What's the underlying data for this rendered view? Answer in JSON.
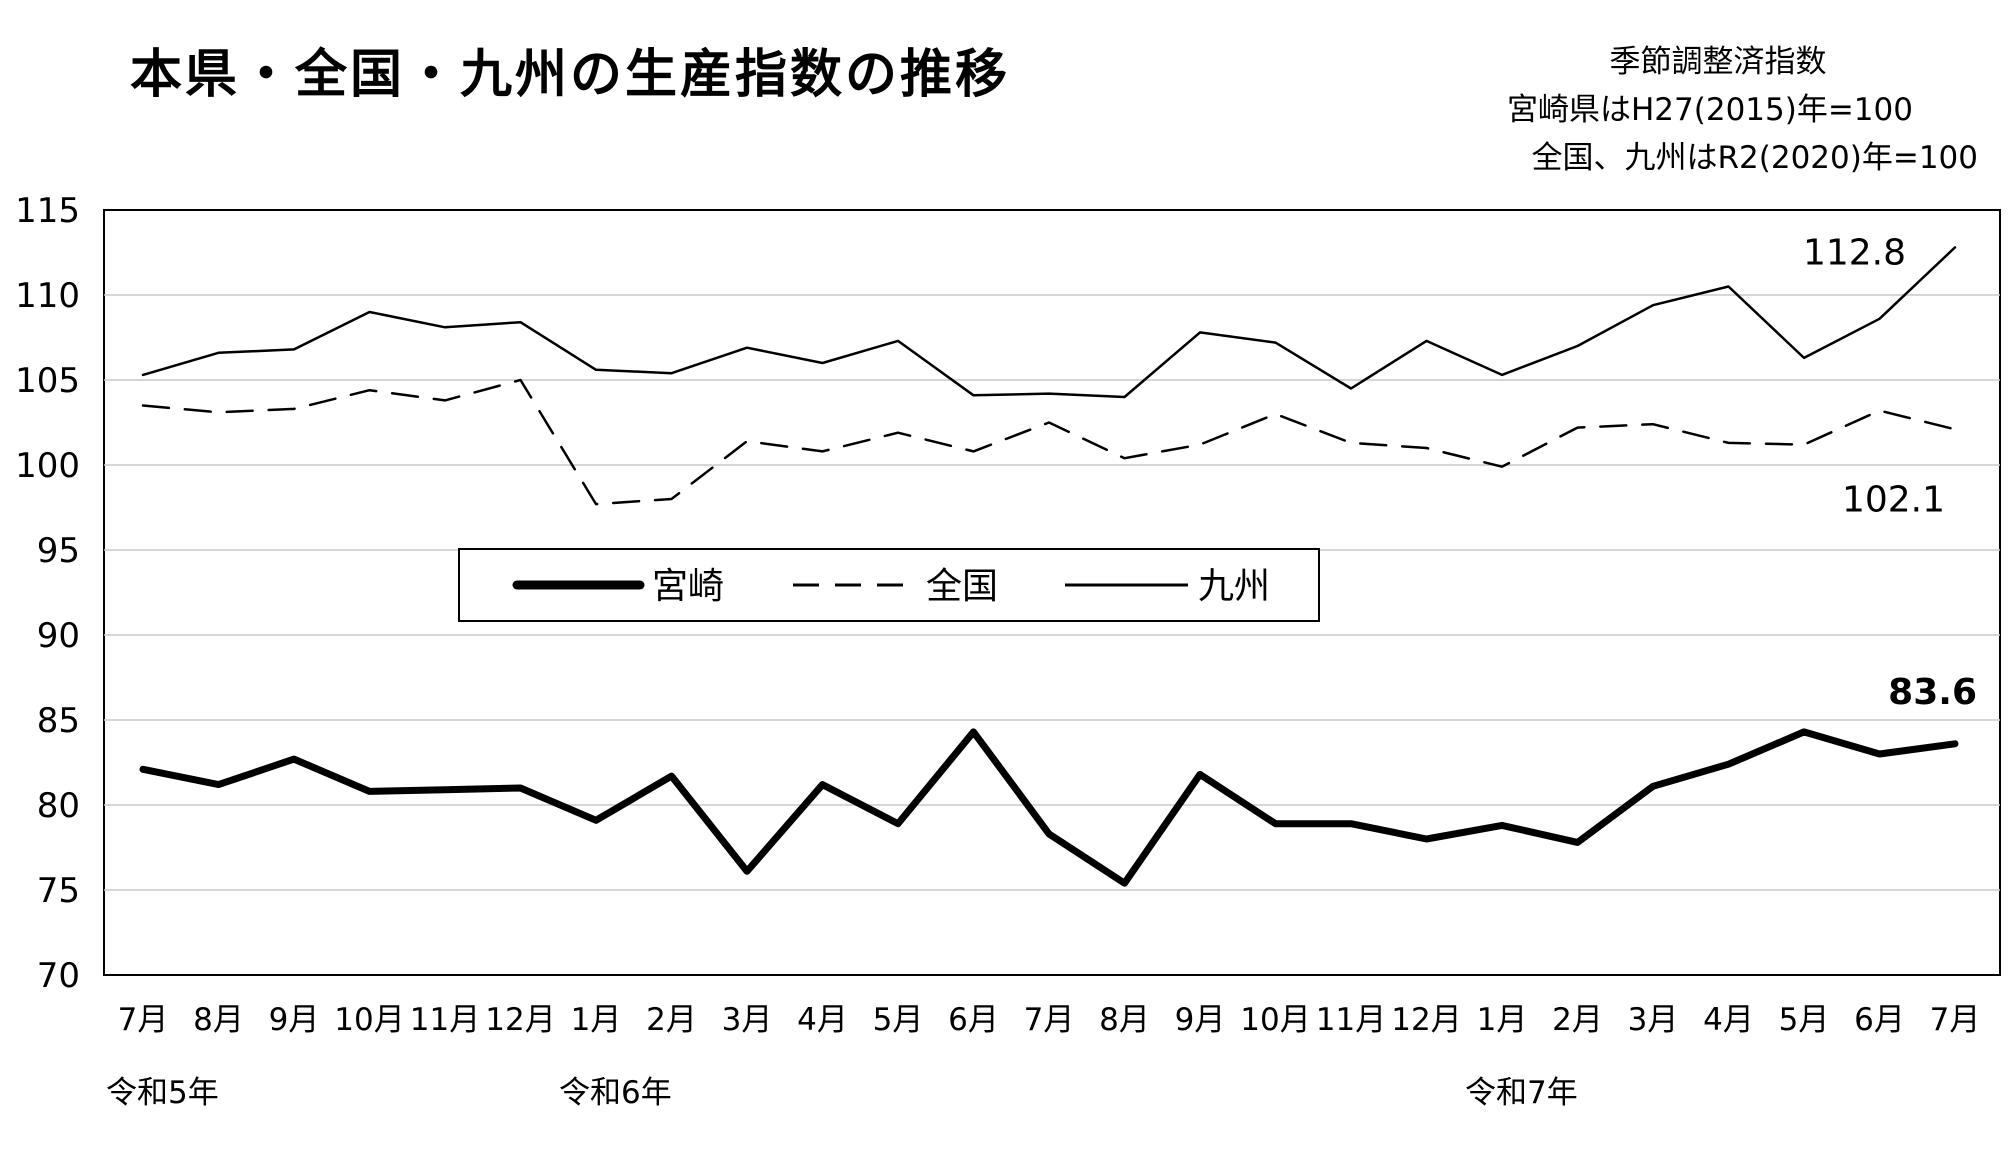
{
  "chart_data": {
    "type": "line",
    "title": "本県・全国・九州の生産指数の推移",
    "notes": [
      "季節調整済指数",
      "宮崎県はH27(2015)年=100",
      "全国、九州はR2(2020)年=100"
    ],
    "ylim": [
      70,
      115
    ],
    "yticks": [
      70,
      75,
      80,
      85,
      90,
      95,
      100,
      105,
      110,
      115
    ],
    "grid": true,
    "legend_position": "center",
    "categories": [
      "7月",
      "8月",
      "9月",
      "10月",
      "11月",
      "12月",
      "1月",
      "2月",
      "3月",
      "4月",
      "5月",
      "6月",
      "7月",
      "8月",
      "9月",
      "10月",
      "11月",
      "12月",
      "1月",
      "2月",
      "3月",
      "4月",
      "5月",
      "6月",
      "7月"
    ],
    "era_labels": [
      {
        "text": "令和5年",
        "index": 0
      },
      {
        "text": "令和6年",
        "index": 6
      },
      {
        "text": "令和7年",
        "index": 18
      }
    ],
    "series": [
      {
        "name": "宮崎",
        "style": "thick-solid",
        "values": [
          82.1,
          81.2,
          82.7,
          80.8,
          80.9,
          81.0,
          79.1,
          81.7,
          76.1,
          81.2,
          78.9,
          84.3,
          78.3,
          75.4,
          81.8,
          78.9,
          78.9,
          78.0,
          78.8,
          77.8,
          81.1,
          82.4,
          84.3,
          83.0,
          83.6
        ],
        "end_label": "83.6"
      },
      {
        "name": "全国",
        "style": "dashed",
        "values": [
          103.5,
          103.1,
          103.3,
          104.4,
          103.8,
          105.0,
          97.7,
          98.0,
          101.4,
          100.8,
          101.9,
          100.8,
          102.5,
          100.4,
          101.2,
          103.0,
          101.3,
          101.0,
          99.9,
          102.2,
          102.4,
          101.3,
          101.2,
          103.2,
          102.1
        ],
        "end_label": "102.1"
      },
      {
        "name": "九州",
        "style": "solid",
        "values": [
          105.3,
          106.6,
          106.8,
          109.0,
          108.1,
          108.4,
          105.6,
          105.4,
          106.9,
          106.0,
          107.3,
          104.1,
          104.2,
          104.0,
          107.8,
          107.2,
          104.5,
          107.3,
          105.3,
          107.0,
          109.4,
          110.5,
          106.3,
          108.6,
          112.8
        ],
        "end_label": "112.8"
      }
    ]
  }
}
